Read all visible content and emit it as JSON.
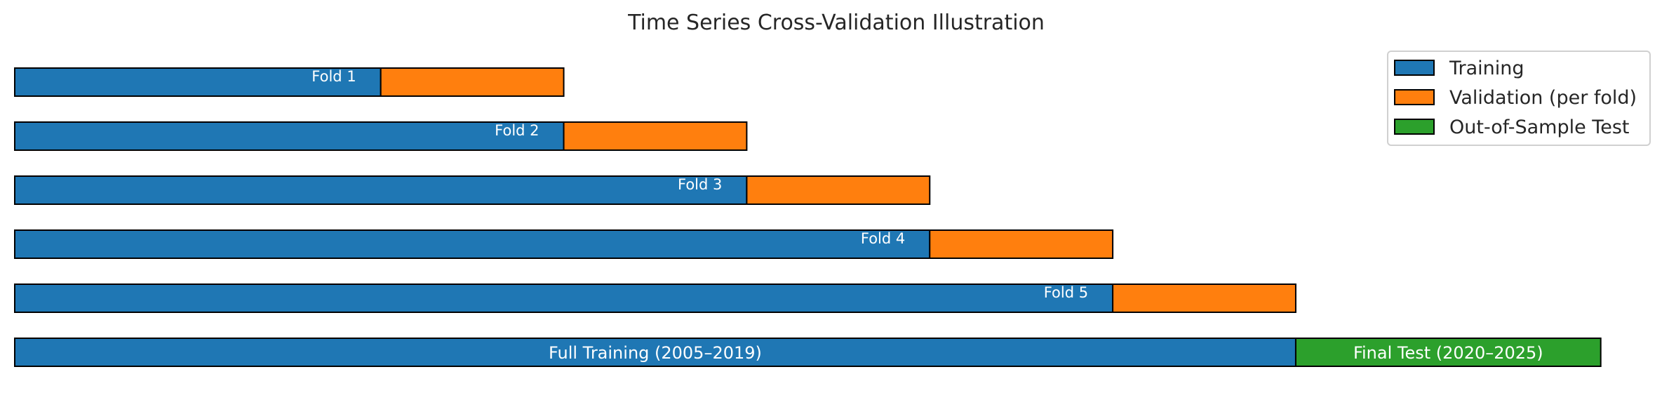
{
  "chart_data": {
    "type": "bar",
    "orientation": "horizontal",
    "stacked": true,
    "title": "Time Series Cross-Validation Illustration",
    "xlabel": "",
    "ylabel": "",
    "axes_visible": false,
    "grid": false,
    "legend_position": "top-right",
    "xlim": [
      0,
      21
    ],
    "legend": [
      {
        "name": "Training",
        "color": "#1f77b4"
      },
      {
        "name": "Validation (per fold)",
        "color": "#ff7f0e"
      },
      {
        "name": "Out-of-Sample Test",
        "color": "#2ca02c"
      }
    ],
    "rows": [
      {
        "label": "Fold 1",
        "segments": [
          {
            "series": "Training",
            "start": 0,
            "end": 6
          },
          {
            "series": "Validation (per fold)",
            "start": 6,
            "end": 9
          }
        ]
      },
      {
        "label": "Fold 2",
        "segments": [
          {
            "series": "Training",
            "start": 0,
            "end": 9
          },
          {
            "series": "Validation (per fold)",
            "start": 9,
            "end": 12
          }
        ]
      },
      {
        "label": "Fold 3",
        "segments": [
          {
            "series": "Training",
            "start": 0,
            "end": 12
          },
          {
            "series": "Validation (per fold)",
            "start": 12,
            "end": 15
          }
        ]
      },
      {
        "label": "Fold 4",
        "segments": [
          {
            "series": "Training",
            "start": 0,
            "end": 15
          },
          {
            "series": "Validation (per fold)",
            "start": 15,
            "end": 18
          }
        ]
      },
      {
        "label": "Fold 5",
        "segments": [
          {
            "series": "Training",
            "start": 0,
            "end": 18
          },
          {
            "series": "Validation (per fold)",
            "start": 18,
            "end": 21
          }
        ]
      },
      {
        "label": "",
        "segments": [
          {
            "series": "Training",
            "start": 0,
            "end": 21,
            "label": "Full Training (2005–2019)"
          },
          {
            "series": "Out-of-Sample Test",
            "start": 21,
            "end": 26,
            "label": "Final Test (2020–2025)"
          }
        ]
      }
    ]
  }
}
